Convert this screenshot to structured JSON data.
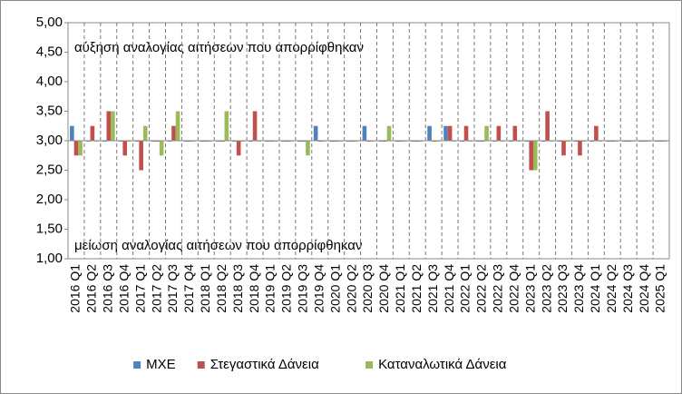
{
  "chart_data": {
    "type": "bar",
    "categories": [
      "2016 Q1",
      "2016 Q2",
      "2016 Q3",
      "2016 Q4",
      "2017 Q1",
      "2017 Q2",
      "2017 Q3",
      "2017 Q4",
      "2018 Q1",
      "2018 Q2",
      "2018 Q3",
      "2018 Q4",
      "2019 Q1",
      "2019 Q2",
      "2019 Q3",
      "2019 Q4",
      "2020 Q1",
      "2020 Q2",
      "2020 Q3",
      "2020 Q4",
      "2021 Q1",
      "2021 Q2",
      "2021 Q3",
      "2021 Q4",
      "2022 Q1",
      "2022 Q2",
      "2022 Q3",
      "2022 Q4",
      "2023 Q1",
      "2023 Q2",
      "2023 Q3",
      "2023 Q4",
      "2024 Q1",
      "2024 Q2",
      "2024 Q3",
      "2024 Q4",
      "2025 Q1"
    ],
    "series": [
      {
        "name": "ΜΧΕ",
        "color": "#4f81bd",
        "values": [
          3.25,
          3,
          3,
          3,
          3,
          3,
          3,
          3,
          3,
          3,
          3,
          3,
          3,
          3,
          3,
          3.25,
          3,
          3,
          3.25,
          3,
          3,
          3,
          3.25,
          3.25,
          3,
          3,
          3,
          3,
          3,
          3,
          3,
          3,
          3,
          3,
          3,
          3,
          3
        ]
      },
      {
        "name": "Στεγαστικά Δάνεια",
        "color": "#c0504d",
        "values": [
          2.75,
          3.25,
          3.5,
          2.75,
          2.5,
          3,
          3.25,
          3,
          3,
          3,
          2.75,
          3.5,
          3,
          3,
          3,
          3,
          3,
          3,
          3,
          3,
          3,
          3,
          3,
          3.25,
          3.25,
          3,
          3.25,
          3.25,
          2.5,
          3.5,
          2.75,
          2.75,
          3.25,
          3,
          3,
          3,
          3
        ]
      },
      {
        "name": "Καταναλωτικά Δάνεια",
        "color": "#9bbb59",
        "values": [
          2.75,
          3,
          3.5,
          3,
          3.25,
          2.75,
          3.5,
          3,
          3,
          3.5,
          3,
          3,
          3,
          3,
          2.75,
          3,
          3,
          3,
          3,
          3.25,
          3,
          3,
          3,
          3,
          3,
          3.25,
          3,
          3,
          2.5,
          3,
          3,
          3,
          3,
          3,
          3,
          3,
          3
        ]
      }
    ],
    "base": 3,
    "ylim": [
      1,
      5
    ],
    "yticks": [
      {
        "value": 1,
        "label": "1,00"
      },
      {
        "value": 1.5,
        "label": "1,50"
      },
      {
        "value": 2,
        "label": "2,00"
      },
      {
        "value": 2.5,
        "label": "2,50"
      },
      {
        "value": 3,
        "label": "3,00"
      },
      {
        "value": 3.5,
        "label": "3,50"
      },
      {
        "value": 4,
        "label": "4,00"
      },
      {
        "value": 4.5,
        "label": "4,50"
      },
      {
        "value": 5,
        "label": "5,00"
      }
    ],
    "annotations": [
      "αύξηση αναλογίας αιτήσεων που απορρίφθηκαν",
      "μείωση αναλογίας αιτήσεων που απορρίφθηκαν"
    ],
    "legend": "bottom"
  }
}
